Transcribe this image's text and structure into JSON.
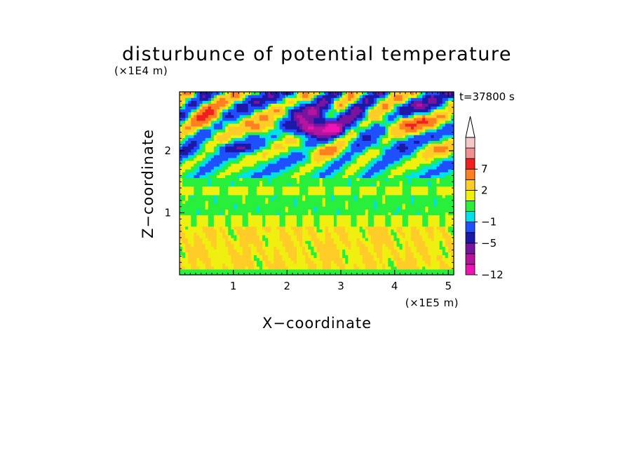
{
  "chart_data": {
    "type": "heatmap",
    "title": "disturbunce of potential temperature",
    "time_label": "t=37800 s",
    "xlabel": "X−coordinate",
    "ylabel": "Z−coordinate",
    "x_unit": "(×1E5 m)",
    "y_unit": "(×1E4 m)",
    "xlim": [
      0,
      5.1
    ],
    "ylim": [
      0,
      2.95
    ],
    "x_ticks": [
      {
        "v": 1,
        "label": "1"
      },
      {
        "v": 2,
        "label": "2"
      },
      {
        "v": 3,
        "label": "3"
      },
      {
        "v": 4,
        "label": "4"
      },
      {
        "v": 5,
        "label": "5"
      }
    ],
    "y_ticks": [
      {
        "v": 1,
        "label": "1"
      },
      {
        "v": 2,
        "label": "2"
      }
    ],
    "colorbar": {
      "levels": [
        {
          "value": -12,
          "color": "#ee14b4"
        },
        {
          "value": -10,
          "color": "#b4149e"
        },
        {
          "value": -7,
          "color": "#7814a0"
        },
        {
          "value": -5,
          "color": "#1e18a8"
        },
        {
          "value": -3,
          "color": "#1e50ff"
        },
        {
          "value": -1,
          "color": "#00e0e8"
        },
        {
          "value": 0,
          "color": "#28ee3c"
        },
        {
          "value": 1,
          "color": "#f0f010"
        },
        {
          "value": 2,
          "color": "#ffcc28"
        },
        {
          "value": 4,
          "color": "#ff8020"
        },
        {
          "value": 7,
          "color": "#f02020"
        },
        {
          "value": 9,
          "color": "#f09090"
        },
        {
          "value": 11,
          "color": "#f4c8c8"
        }
      ],
      "tick_labels": [
        {
          "value": 7,
          "label": "7"
        },
        {
          "value": 2,
          "label": "2"
        },
        {
          "value": -1,
          "label": "−1"
        },
        {
          "value": -5,
          "label": "−5"
        },
        {
          "value": -12,
          "label": "−12"
        }
      ],
      "over_arrow_color": "#ffffff"
    },
    "field_features": [
      {
        "x": 2.45,
        "z": 2.35,
        "sx": 0.25,
        "sz": 0.12,
        "amp": -11
      },
      {
        "x": 2.85,
        "z": 2.35,
        "sx": 0.18,
        "sz": 0.1,
        "amp": -10
      },
      {
        "x": 2.6,
        "z": 2.55,
        "sx": 0.35,
        "sz": 0.2,
        "amp": -5
      },
      {
        "x": 2.15,
        "z": 2.7,
        "sx": 0.2,
        "sz": 0.15,
        "amp": -4
      },
      {
        "x": 1.1,
        "z": 2.05,
        "sx": 0.45,
        "sz": 0.07,
        "amp": -3
      },
      {
        "x": 3.3,
        "z": 2.5,
        "sx": 0.25,
        "sz": 0.2,
        "amp": -4
      },
      {
        "x": 0.5,
        "z": 2.55,
        "sx": 0.3,
        "sz": 0.2,
        "amp": 5
      },
      {
        "x": 1.6,
        "z": 2.35,
        "sx": 0.3,
        "sz": 0.12,
        "amp": 4
      },
      {
        "x": 2.7,
        "z": 2.0,
        "sx": 0.35,
        "sz": 0.1,
        "amp": 4
      },
      {
        "x": 4.3,
        "z": 2.45,
        "sx": 0.6,
        "sz": 0.12,
        "amp": 5
      },
      {
        "x": 4.6,
        "z": 2.7,
        "sx": 0.4,
        "sz": 0.12,
        "amp": -3
      },
      {
        "x": 3.9,
        "z": 2.1,
        "sx": 0.5,
        "sz": 0.12,
        "amp": -2
      },
      {
        "x": 0.2,
        "z": 2.0,
        "sx": 0.25,
        "sz": 0.12,
        "amp": -2
      },
      {
        "x": 4.8,
        "z": 2.05,
        "sx": 0.35,
        "sz": 0.1,
        "amp": 3
      }
    ]
  }
}
